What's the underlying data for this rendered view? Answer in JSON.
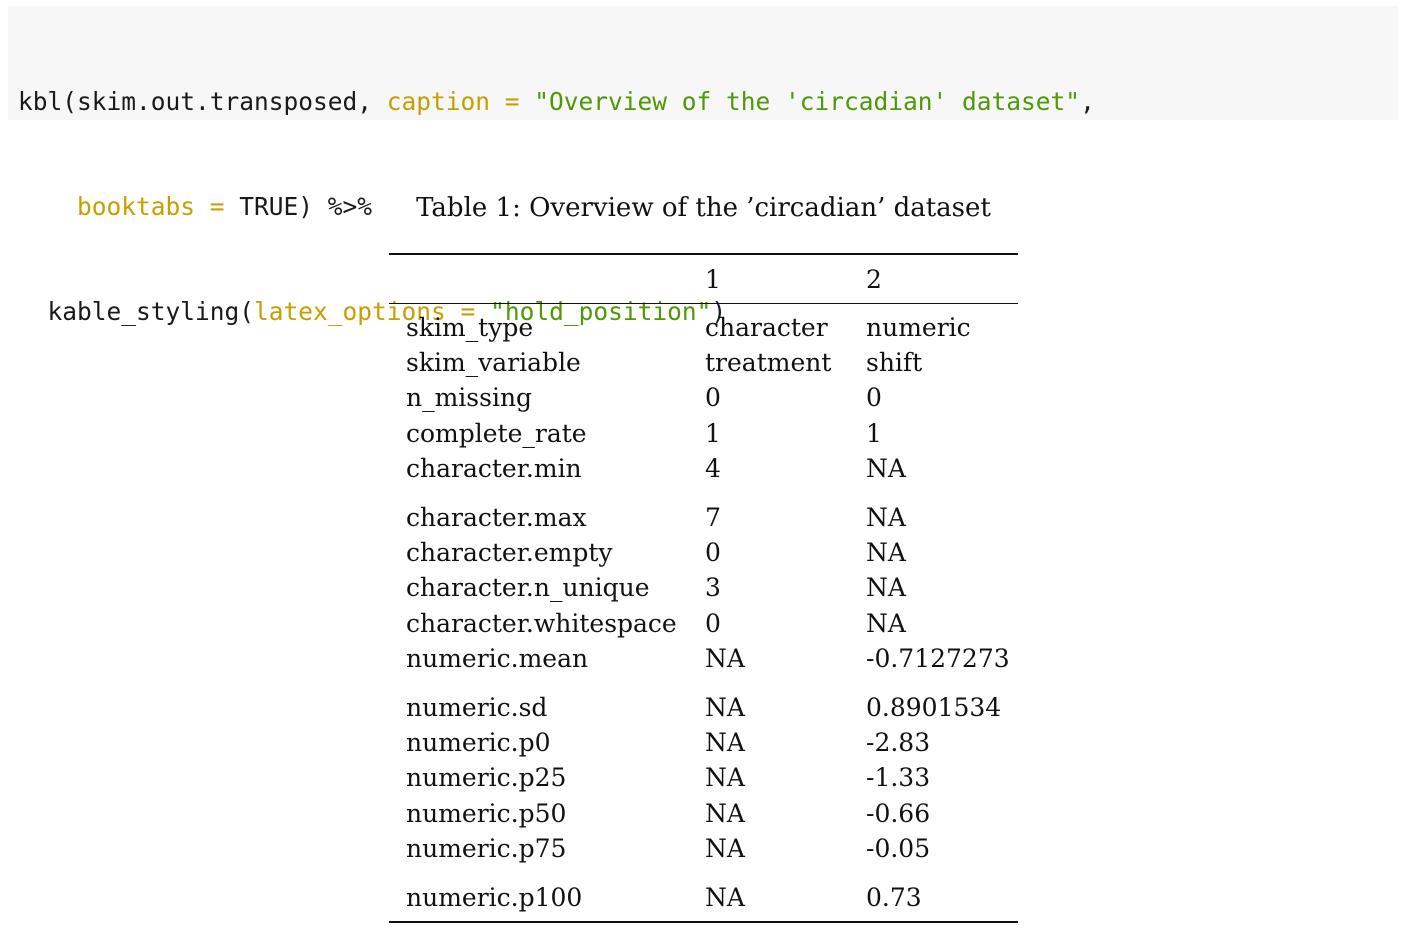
{
  "code": {
    "line1": {
      "fn": "kbl(skim.out.transposed, ",
      "arg": "caption",
      "eq": " = ",
      "str": "\"Overview of the 'circadian' dataset\"",
      "tail": ","
    },
    "line2": {
      "indent": "    ",
      "arg": "booktabs",
      "eq": " = ",
      "val": "TRUE) %>%"
    },
    "line3": {
      "indent": "  ",
      "fn": "kable_styling(",
      "arg": "latex_options",
      "eq": " = ",
      "str": "\"hold_position\"",
      "tail": ")"
    }
  },
  "table": {
    "caption": "Table 1:  Overview of the ’circadian’ dataset",
    "header": [
      "",
      "1",
      "2"
    ],
    "rows": [
      [
        "skim_type",
        "character",
        "numeric"
      ],
      [
        "skim_variable",
        "treatment",
        "shift"
      ],
      [
        "n_missing",
        "0",
        "0"
      ],
      [
        "complete_rate",
        "1",
        "1"
      ],
      [
        "character.min",
        "4",
        "NA"
      ],
      [
        "character.max",
        "7",
        "NA"
      ],
      [
        "character.empty",
        "0",
        "NA"
      ],
      [
        "character.n_unique",
        "3",
        "NA"
      ],
      [
        "character.whitespace",
        "0",
        "NA"
      ],
      [
        "numeric.mean",
        "NA",
        "-0.7127273"
      ],
      [
        "numeric.sd",
        "NA",
        "0.8901534"
      ],
      [
        "numeric.p0",
        "NA",
        "-2.83"
      ],
      [
        "numeric.p25",
        "NA",
        "-1.33"
      ],
      [
        "numeric.p50",
        "NA",
        "-0.66"
      ],
      [
        "numeric.p75",
        "NA",
        "-0.05"
      ],
      [
        "numeric.p100",
        "NA",
        "0.73"
      ]
    ]
  }
}
